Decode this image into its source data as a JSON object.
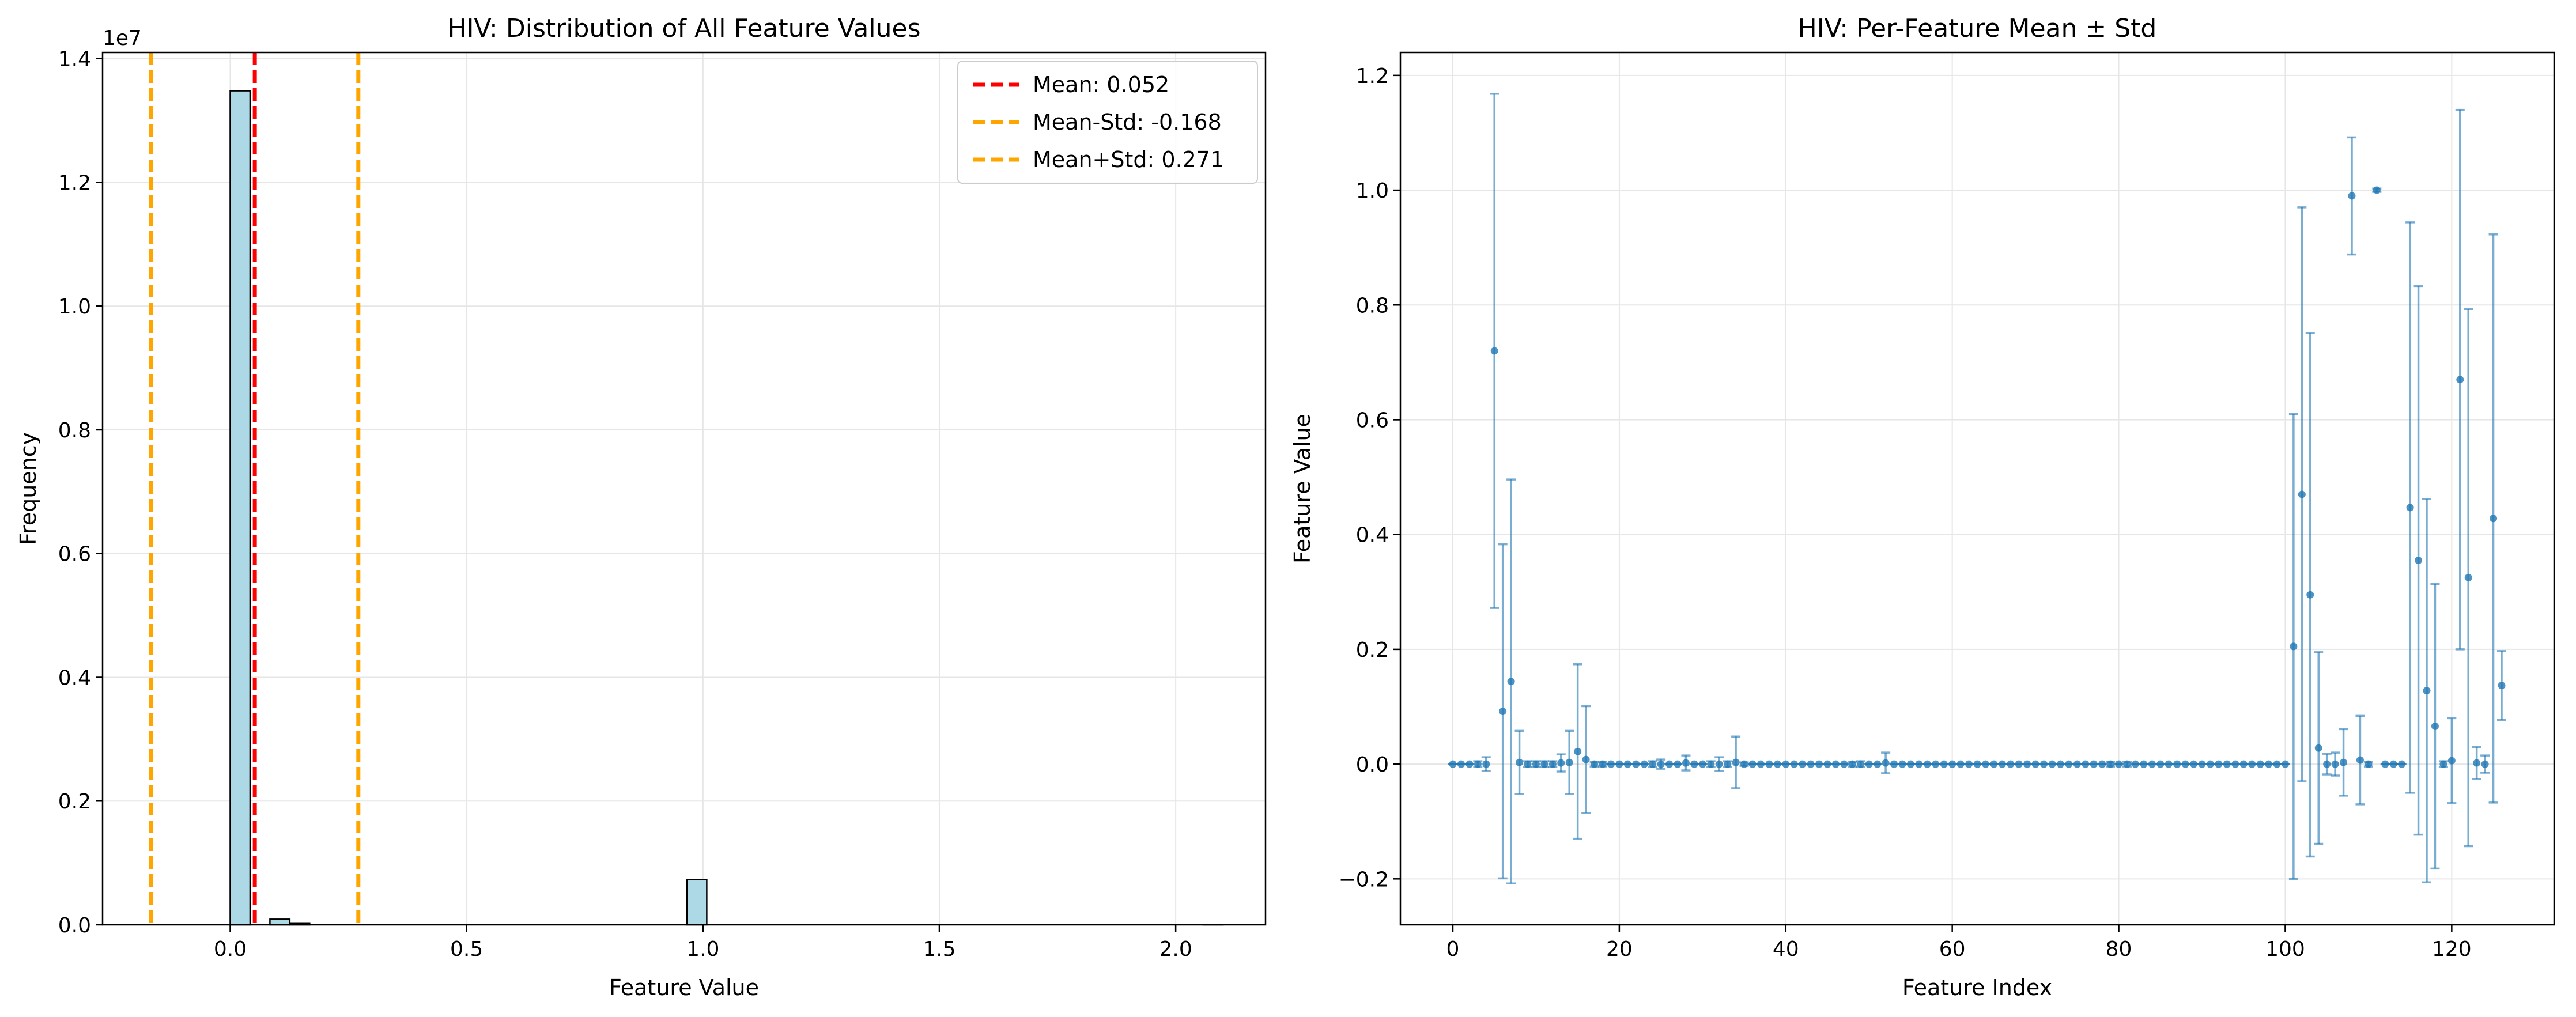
{
  "chart_data": [
    {
      "type": "bar",
      "title": "HIV: Distribution of All Feature Values",
      "xlabel": "Feature Value",
      "ylabel": "Frequency",
      "y_scale_label": "1e7",
      "xlim": [
        -0.27,
        2.19
      ],
      "ylim": [
        0,
        14100000
      ],
      "xticks": [
        0.0,
        0.5,
        1.0,
        1.5,
        2.0
      ],
      "xtick_labels": [
        "0.0",
        "0.5",
        "1.0",
        "1.5",
        "2.0"
      ],
      "yticks": [
        0,
        2000000,
        4000000,
        6000000,
        8000000,
        10000000,
        12000000,
        14000000
      ],
      "ytick_labels": [
        "0.0",
        "0.2",
        "0.4",
        "0.6",
        "0.8",
        "1.0",
        "1.2",
        "1.4"
      ],
      "grid": true,
      "bins": [
        {
          "x0": 0.0,
          "x1": 0.042,
          "value": 13480000
        },
        {
          "x0": 0.084,
          "x1": 0.126,
          "value": 90000
        },
        {
          "x0": 0.126,
          "x1": 0.168,
          "value": 30000
        },
        {
          "x0": 0.966,
          "x1": 1.008,
          "value": 730000
        },
        {
          "x0": 2.058,
          "x1": 2.1,
          "value": 2000
        }
      ],
      "bar_color": "#add8e6",
      "reference_lines": [
        {
          "label": "Mean: 0.052",
          "x": 0.052,
          "color": "#ff0000"
        },
        {
          "label": "Mean-Std: -0.168",
          "x": -0.168,
          "color": "#ffa500"
        },
        {
          "label": "Mean+Std: 0.271",
          "x": 0.271,
          "color": "#ffa500"
        }
      ],
      "legend_position": "top-right"
    },
    {
      "type": "scatter",
      "title": "HIV: Per-Feature Mean ± Std",
      "xlabel": "Feature Index",
      "ylabel": "Feature Value",
      "xlim": [
        -6.3,
        132.3
      ],
      "ylim": [
        -0.28,
        1.24
      ],
      "xticks": [
        0,
        20,
        40,
        60,
        80,
        100,
        120
      ],
      "xtick_labels": [
        "0",
        "20",
        "40",
        "60",
        "80",
        "100",
        "120"
      ],
      "yticks": [
        -0.2,
        0.0,
        0.2,
        0.4,
        0.6,
        0.8,
        1.0,
        1.2
      ],
      "ytick_labels": [
        "−0.2",
        "0.0",
        "0.2",
        "0.4",
        "0.6",
        "0.8",
        "1.0",
        "1.2"
      ],
      "grid": true,
      "color": "#1f77b4",
      "points": [
        {
          "x": 0,
          "mean": 0,
          "std": 0
        },
        {
          "x": 1,
          "mean": 0,
          "std": 0
        },
        {
          "x": 2,
          "mean": 0,
          "std": 0
        },
        {
          "x": 3,
          "mean": 0,
          "std": 0.005
        },
        {
          "x": 4,
          "mean": 0,
          "std": 0.012
        },
        {
          "x": 5,
          "mean": 0.72,
          "std": 0.448
        },
        {
          "x": 6,
          "mean": 0.092,
          "std": 0.291
        },
        {
          "x": 7,
          "mean": 0.144,
          "std": 0.352
        },
        {
          "x": 8,
          "mean": 0.003,
          "std": 0.055
        },
        {
          "x": 9,
          "mean": 0,
          "std": 0.005
        },
        {
          "x": 10,
          "mean": 0,
          "std": 0.005
        },
        {
          "x": 11,
          "mean": 0,
          "std": 0.005
        },
        {
          "x": 12,
          "mean": 0,
          "std": 0.005
        },
        {
          "x": 13,
          "mean": 0.002,
          "std": 0.015
        },
        {
          "x": 14,
          "mean": 0.003,
          "std": 0.055
        },
        {
          "x": 15,
          "mean": 0.022,
          "std": 0.152
        },
        {
          "x": 16,
          "mean": 0.008,
          "std": 0.093
        },
        {
          "x": 17,
          "mean": 0,
          "std": 0.004
        },
        {
          "x": 18,
          "mean": 0,
          "std": 0.004
        },
        {
          "x": 19,
          "mean": 0,
          "std": 0
        },
        {
          "x": 20,
          "mean": 0,
          "std": 0
        },
        {
          "x": 21,
          "mean": 0,
          "std": 0
        },
        {
          "x": 22,
          "mean": 0,
          "std": 0
        },
        {
          "x": 23,
          "mean": 0,
          "std": 0
        },
        {
          "x": 24,
          "mean": 0,
          "std": 0.005
        },
        {
          "x": 25,
          "mean": 0,
          "std": 0.008
        },
        {
          "x": 26,
          "mean": 0,
          "std": 0
        },
        {
          "x": 27,
          "mean": 0,
          "std": 0
        },
        {
          "x": 28,
          "mean": 0.002,
          "std": 0.013
        },
        {
          "x": 29,
          "mean": 0,
          "std": 0
        },
        {
          "x": 30,
          "mean": 0,
          "std": 0
        },
        {
          "x": 31,
          "mean": 0,
          "std": 0.005
        },
        {
          "x": 32,
          "mean": 0,
          "std": 0.012
        },
        {
          "x": 33,
          "mean": 0,
          "std": 0.005
        },
        {
          "x": 34,
          "mean": 0.003,
          "std": 0.045
        },
        {
          "x": 35,
          "mean": 0,
          "std": 0.003
        },
        {
          "x": 36,
          "mean": 0,
          "std": 0
        },
        {
          "x": 37,
          "mean": 0,
          "std": 0
        },
        {
          "x": 38,
          "mean": 0,
          "std": 0
        },
        {
          "x": 39,
          "mean": 0,
          "std": 0
        },
        {
          "x": 40,
          "mean": 0,
          "std": 0
        },
        {
          "x": 41,
          "mean": 0,
          "std": 0
        },
        {
          "x": 42,
          "mean": 0,
          "std": 0
        },
        {
          "x": 43,
          "mean": 0,
          "std": 0
        },
        {
          "x": 44,
          "mean": 0,
          "std": 0
        },
        {
          "x": 45,
          "mean": 0,
          "std": 0
        },
        {
          "x": 46,
          "mean": 0,
          "std": 0
        },
        {
          "x": 47,
          "mean": 0,
          "std": 0
        },
        {
          "x": 48,
          "mean": 0,
          "std": 0.004
        },
        {
          "x": 49,
          "mean": 0,
          "std": 0.005
        },
        {
          "x": 50,
          "mean": 0,
          "std": 0
        },
        {
          "x": 51,
          "mean": 0,
          "std": 0
        },
        {
          "x": 52,
          "mean": 0.002,
          "std": 0.018
        },
        {
          "x": 53,
          "mean": 0,
          "std": 0
        },
        {
          "x": 54,
          "mean": 0,
          "std": 0
        },
        {
          "x": 55,
          "mean": 0,
          "std": 0
        },
        {
          "x": 56,
          "mean": 0,
          "std": 0
        },
        {
          "x": 57,
          "mean": 0,
          "std": 0
        },
        {
          "x": 58,
          "mean": 0,
          "std": 0
        },
        {
          "x": 59,
          "mean": 0,
          "std": 0
        },
        {
          "x": 60,
          "mean": 0,
          "std": 0
        },
        {
          "x": 61,
          "mean": 0,
          "std": 0
        },
        {
          "x": 62,
          "mean": 0,
          "std": 0
        },
        {
          "x": 63,
          "mean": 0,
          "std": 0
        },
        {
          "x": 64,
          "mean": 0,
          "std": 0
        },
        {
          "x": 65,
          "mean": 0,
          "std": 0
        },
        {
          "x": 66,
          "mean": 0,
          "std": 0
        },
        {
          "x": 67,
          "mean": 0,
          "std": 0
        },
        {
          "x": 68,
          "mean": 0,
          "std": 0
        },
        {
          "x": 69,
          "mean": 0,
          "std": 0
        },
        {
          "x": 70,
          "mean": 0,
          "std": 0
        },
        {
          "x": 71,
          "mean": 0,
          "std": 0
        },
        {
          "x": 72,
          "mean": 0,
          "std": 0
        },
        {
          "x": 73,
          "mean": 0,
          "std": 0
        },
        {
          "x": 74,
          "mean": 0,
          "std": 0
        },
        {
          "x": 75,
          "mean": 0,
          "std": 0
        },
        {
          "x": 76,
          "mean": 0,
          "std": 0
        },
        {
          "x": 77,
          "mean": 0,
          "std": 0
        },
        {
          "x": 78,
          "mean": 0,
          "std": 0
        },
        {
          "x": 79,
          "mean": 0,
          "std": 0.004
        },
        {
          "x": 80,
          "mean": 0,
          "std": 0
        },
        {
          "x": 81,
          "mean": 0,
          "std": 0.004
        },
        {
          "x": 82,
          "mean": 0,
          "std": 0
        },
        {
          "x": 83,
          "mean": 0,
          "std": 0
        },
        {
          "x": 84,
          "mean": 0,
          "std": 0
        },
        {
          "x": 85,
          "mean": 0,
          "std": 0
        },
        {
          "x": 86,
          "mean": 0,
          "std": 0
        },
        {
          "x": 87,
          "mean": 0,
          "std": 0
        },
        {
          "x": 88,
          "mean": 0,
          "std": 0
        },
        {
          "x": 89,
          "mean": 0,
          "std": 0
        },
        {
          "x": 90,
          "mean": 0,
          "std": 0
        },
        {
          "x": 91,
          "mean": 0,
          "std": 0
        },
        {
          "x": 92,
          "mean": 0,
          "std": 0
        },
        {
          "x": 93,
          "mean": 0,
          "std": 0
        },
        {
          "x": 94,
          "mean": 0,
          "std": 0
        },
        {
          "x": 95,
          "mean": 0,
          "std": 0
        },
        {
          "x": 96,
          "mean": 0,
          "std": 0
        },
        {
          "x": 97,
          "mean": 0,
          "std": 0
        },
        {
          "x": 98,
          "mean": 0,
          "std": 0
        },
        {
          "x": 99,
          "mean": 0,
          "std": 0
        },
        {
          "x": 100,
          "mean": 0,
          "std": 0
        },
        {
          "x": 101,
          "mean": 0.205,
          "std": 0.405
        },
        {
          "x": 102,
          "mean": 0.47,
          "std": 0.5
        },
        {
          "x": 103,
          "mean": 0.295,
          "std": 0.456
        },
        {
          "x": 104,
          "mean": 0.028,
          "std": 0.167
        },
        {
          "x": 105,
          "mean": 0,
          "std": 0.018
        },
        {
          "x": 106,
          "mean": 0,
          "std": 0.02
        },
        {
          "x": 107,
          "mean": 0.003,
          "std": 0.058
        },
        {
          "x": 108,
          "mean": 0.99,
          "std": 0.102
        },
        {
          "x": 109,
          "mean": 0.007,
          "std": 0.077
        },
        {
          "x": 110,
          "mean": 0,
          "std": 0.004
        },
        {
          "x": 111,
          "mean": 1.0,
          "std": 0.003
        },
        {
          "x": 112,
          "mean": 0,
          "std": 0
        },
        {
          "x": 113,
          "mean": 0,
          "std": 0
        },
        {
          "x": 114,
          "mean": 0,
          "std": 0
        },
        {
          "x": 115,
          "mean": 0.447,
          "std": 0.497
        },
        {
          "x": 116,
          "mean": 0.355,
          "std": 0.478
        },
        {
          "x": 117,
          "mean": 0.128,
          "std": 0.334
        },
        {
          "x": 118,
          "mean": 0.066,
          "std": 0.248
        },
        {
          "x": 119,
          "mean": 0,
          "std": 0.005
        },
        {
          "x": 120,
          "mean": 0.006,
          "std": 0.074
        },
        {
          "x": 121,
          "mean": 0.67,
          "std": 0.47
        },
        {
          "x": 122,
          "mean": 0.325,
          "std": 0.468
        },
        {
          "x": 123,
          "mean": 0.002,
          "std": 0.028
        },
        {
          "x": 124,
          "mean": 0,
          "std": 0.015
        },
        {
          "x": 125,
          "mean": 0.428,
          "std": 0.495
        },
        {
          "x": 126,
          "mean": 0.137,
          "std": 0.06
        }
      ]
    }
  ]
}
